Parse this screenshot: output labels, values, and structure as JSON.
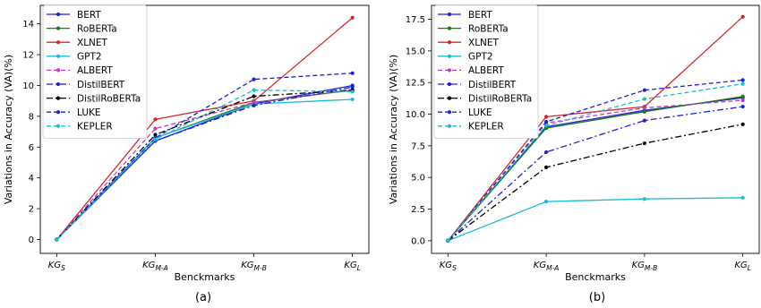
{
  "chart_data": [
    {
      "type": "line",
      "caption": "(a)",
      "ylabel": "Variations in Accuracy (VA)(%)",
      "xlabel": "Benckmarks",
      "categories": [
        {
          "main": "KG",
          "sub": "S"
        },
        {
          "main": "KG",
          "sub": "M-A"
        },
        {
          "main": "KG",
          "sub": "M-B"
        },
        {
          "main": "KG",
          "sub": "L"
        }
      ],
      "ylim": [
        -0.9,
        15.2
      ],
      "yticks": [
        0,
        2,
        4,
        6,
        8,
        10,
        12,
        14
      ],
      "ytick_labels": [
        "0",
        "2",
        "4",
        "6",
        "8",
        "10",
        "12",
        "14"
      ],
      "legend_position": "top-left",
      "grid": false,
      "series": [
        {
          "name": "BERT",
          "color": "#1f1fd6",
          "dash": "solid",
          "values": [
            0,
            6.4,
            8.8,
            10.0
          ]
        },
        {
          "name": "RoBERTa",
          "color": "#1a7a1a",
          "dash": "solid",
          "values": [
            0,
            6.6,
            8.9,
            9.7
          ]
        },
        {
          "name": "XLNET",
          "color": "#d62728",
          "dash": "solid",
          "values": [
            0,
            7.8,
            9.0,
            14.4
          ]
        },
        {
          "name": "GPT2",
          "color": "#17becf",
          "dash": "solid",
          "values": [
            0,
            6.6,
            8.8,
            9.1
          ]
        },
        {
          "name": "ALBERT",
          "color": "#c23ac2",
          "dash": "dashed",
          "values": [
            0,
            7.2,
            8.9,
            9.7
          ]
        },
        {
          "name": "DistilBERT",
          "color": "#1f1fd6",
          "dash": "dashdot",
          "values": [
            0,
            6.4,
            8.7,
            9.9
          ]
        },
        {
          "name": "DistilRoBERTa",
          "color": "#000000",
          "dash": "dashdot",
          "values": [
            0,
            6.8,
            9.3,
            9.7
          ]
        },
        {
          "name": "LUKE",
          "color": "#1f1fd6",
          "dash": "dashed",
          "values": [
            0,
            6.6,
            10.4,
            10.8
          ]
        },
        {
          "name": "KEPLER",
          "color": "#17becf",
          "dash": "dashed",
          "values": [
            0,
            6.5,
            9.7,
            9.6
          ]
        }
      ]
    },
    {
      "type": "line",
      "caption": "(b)",
      "ylabel": "Variations in Accuracy (VA)(%)",
      "xlabel": "Benckmarks",
      "categories": [
        {
          "main": "KG",
          "sub": "S"
        },
        {
          "main": "KG",
          "sub": "M-A"
        },
        {
          "main": "KG",
          "sub": "M-B"
        },
        {
          "main": "KG",
          "sub": "L"
        }
      ],
      "ylim": [
        -1.0,
        18.6
      ],
      "yticks": [
        0,
        2.5,
        5,
        7.5,
        10,
        12.5,
        15,
        17.5
      ],
      "ytick_labels": [
        "0.0",
        "2.5",
        "5.0",
        "7.5",
        "10.0",
        "12.5",
        "15.0",
        "17.5"
      ],
      "legend_position": "top-left",
      "grid": false,
      "series": [
        {
          "name": "BERT",
          "color": "#1f1fd6",
          "dash": "solid",
          "values": [
            0,
            9.0,
            10.3,
            11.3
          ]
        },
        {
          "name": "RoBERTa",
          "color": "#1a7a1a",
          "dash": "solid",
          "values": [
            0,
            8.9,
            10.2,
            11.4
          ]
        },
        {
          "name": "XLNET",
          "color": "#d62728",
          "dash": "solid",
          "values": [
            0,
            9.8,
            10.6,
            17.7
          ]
        },
        {
          "name": "GPT2",
          "color": "#17becf",
          "dash": "solid",
          "values": [
            0,
            3.1,
            3.3,
            3.4
          ]
        },
        {
          "name": "ALBERT",
          "color": "#c23ac2",
          "dash": "dashed",
          "values": [
            0,
            9.3,
            10.5,
            11.1
          ]
        },
        {
          "name": "DistilBERT",
          "color": "#1f1fd6",
          "dash": "dashdot",
          "values": [
            0,
            7.0,
            9.5,
            10.6
          ]
        },
        {
          "name": "DistilRoBERTa",
          "color": "#000000",
          "dash": "dashdot",
          "values": [
            0,
            5.8,
            7.7,
            9.2
          ]
        },
        {
          "name": "LUKE",
          "color": "#1f1fd6",
          "dash": "dashed",
          "values": [
            0,
            9.4,
            11.9,
            12.7
          ]
        },
        {
          "name": "KEPLER",
          "color": "#17becf",
          "dash": "dashed",
          "values": [
            0,
            9.1,
            11.2,
            12.4
          ]
        }
      ]
    }
  ]
}
